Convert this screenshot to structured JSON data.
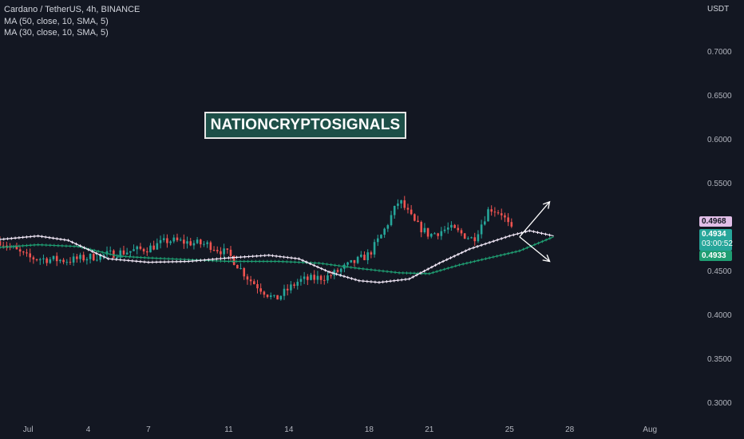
{
  "legend": {
    "title": "Cardano / TetherUS, 4h, BINANCE",
    "ma1": "MA (50, close, 10, SMA, 5)",
    "ma2": "MA (30, close, 10, SMA, 5)"
  },
  "currency": "USDT",
  "watermark": "NATIONCRYPTOSIGNALS",
  "colors": {
    "background": "#131722",
    "up": "#26a69a",
    "down": "#ef5350",
    "ma50": "#f0e6f5",
    "ma30": "#1f9e72",
    "badge_ma50": "#e1bee7",
    "badge_price": "#26a69a"
  },
  "badges": {
    "ma50_value": "0.4968",
    "price_value": "0.4934",
    "countdown": "03:00:52",
    "ma30_value": "0.4933"
  },
  "chart_data": {
    "type": "candlestick",
    "title": "Cardano / TetherUS, 4h, BINANCE",
    "y_axis": {
      "unit": "USDT",
      "ticks": [
        "0.7000",
        "0.6500",
        "0.6000",
        "0.5500",
        "0.4500",
        "0.4000",
        "0.3500",
        "0.3000"
      ],
      "tick_values": [
        0.7,
        0.65,
        0.6,
        0.55,
        0.45,
        0.4,
        0.35,
        0.3
      ],
      "range": [
        0.285,
        0.76
      ]
    },
    "x_axis": {
      "ticks": [
        "Jul",
        "4",
        "7",
        "11",
        "14",
        "18",
        "21",
        "25",
        "28",
        "Aug"
      ],
      "tick_days": [
        1,
        4,
        7,
        11,
        14,
        18,
        21,
        25,
        28,
        32
      ],
      "range_days": [
        -0.4,
        34.3
      ]
    },
    "segments": [
      {
        "day": -0.4,
        "price": 0.485
      },
      {
        "day": 1.0,
        "price": 0.466
      },
      {
        "day": 3.0,
        "price": 0.463
      },
      {
        "day": 5.0,
        "price": 0.47
      },
      {
        "day": 7.0,
        "price": 0.477
      },
      {
        "day": 8.0,
        "price": 0.486
      },
      {
        "day": 10.0,
        "price": 0.481
      },
      {
        "day": 11.0,
        "price": 0.47
      },
      {
        "day": 12.0,
        "price": 0.442
      },
      {
        "day": 13.3,
        "price": 0.418
      },
      {
        "day": 14.5,
        "price": 0.44
      },
      {
        "day": 16.0,
        "price": 0.445
      },
      {
        "day": 17.0,
        "price": 0.458
      },
      {
        "day": 18.0,
        "price": 0.47
      },
      {
        "day": 18.7,
        "price": 0.495
      },
      {
        "day": 19.5,
        "price": 0.532
      },
      {
        "day": 20.3,
        "price": 0.505
      },
      {
        "day": 21.0,
        "price": 0.492
      },
      {
        "day": 22.0,
        "price": 0.5
      },
      {
        "day": 23.2,
        "price": 0.487
      },
      {
        "day": 24.0,
        "price": 0.523
      },
      {
        "day": 24.6,
        "price": 0.517
      },
      {
        "day": 25.2,
        "price": 0.493
      }
    ],
    "ma50": [
      {
        "day": -0.4,
        "value": 0.487
      },
      {
        "day": 1.5,
        "value": 0.491
      },
      {
        "day": 3.0,
        "value": 0.486
      },
      {
        "day": 5.0,
        "value": 0.465
      },
      {
        "day": 7.0,
        "value": 0.461
      },
      {
        "day": 9.0,
        "value": 0.462
      },
      {
        "day": 11.0,
        "value": 0.466
      },
      {
        "day": 13.0,
        "value": 0.469
      },
      {
        "day": 14.5,
        "value": 0.465
      },
      {
        "day": 16.0,
        "value": 0.45
      },
      {
        "day": 17.5,
        "value": 0.44
      },
      {
        "day": 18.5,
        "value": 0.438
      },
      {
        "day": 20.0,
        "value": 0.442
      },
      {
        "day": 21.5,
        "value": 0.46
      },
      {
        "day": 23.0,
        "value": 0.476
      },
      {
        "day": 25.0,
        "value": 0.491
      },
      {
        "day": 26.0,
        "value": 0.497
      },
      {
        "day": 27.2,
        "value": 0.491
      }
    ],
    "ma30": [
      {
        "day": -0.4,
        "value": 0.478
      },
      {
        "day": 1.5,
        "value": 0.481
      },
      {
        "day": 3.5,
        "value": 0.479
      },
      {
        "day": 5.5,
        "value": 0.468
      },
      {
        "day": 7.0,
        "value": 0.466
      },
      {
        "day": 9.0,
        "value": 0.464
      },
      {
        "day": 11.0,
        "value": 0.462
      },
      {
        "day": 13.5,
        "value": 0.462
      },
      {
        "day": 15.5,
        "value": 0.46
      },
      {
        "day": 17.5,
        "value": 0.454
      },
      {
        "day": 19.5,
        "value": 0.449
      },
      {
        "day": 21.0,
        "value": 0.448
      },
      {
        "day": 22.5,
        "value": 0.458
      },
      {
        "day": 24.0,
        "value": 0.466
      },
      {
        "day": 25.5,
        "value": 0.474
      },
      {
        "day": 27.2,
        "value": 0.49
      }
    ],
    "annotations": [
      {
        "type": "arrow",
        "from_day": 25.5,
        "from_price": 0.49,
        "to_day": 27.0,
        "to_price": 0.53
      },
      {
        "type": "arrow",
        "from_day": 25.5,
        "from_price": 0.49,
        "to_day": 27.0,
        "to_price": 0.462
      }
    ]
  }
}
